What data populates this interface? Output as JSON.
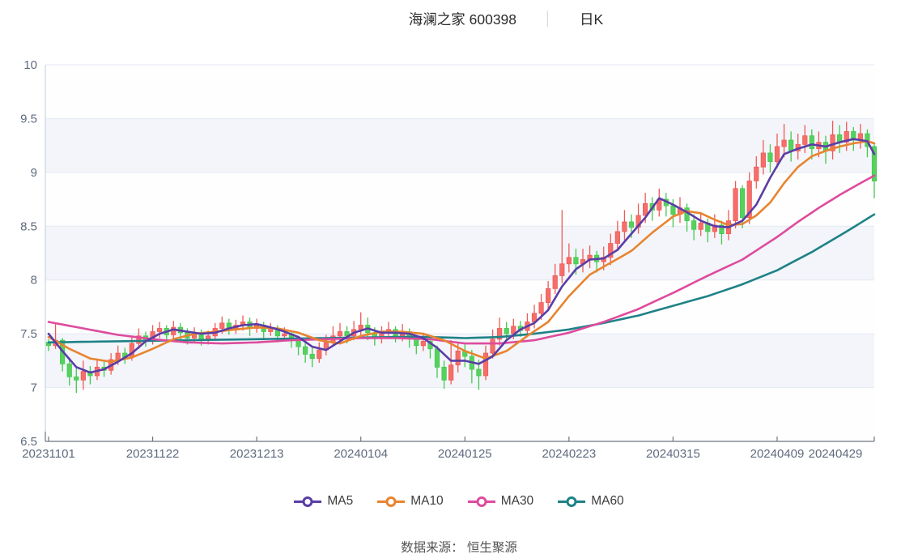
{
  "title": {
    "name_code": "海澜之家 600398",
    "separator": "│",
    "period": "日K"
  },
  "footer": {
    "source_label": "数据来源： 恒生聚源"
  },
  "legend": {
    "items": [
      {
        "label": "MA5",
        "color": "#5a3da6"
      },
      {
        "label": "MA10",
        "color": "#e8842f"
      },
      {
        "label": "MA30",
        "color": "#de4b9d"
      },
      {
        "label": "MA60",
        "color": "#1e8287"
      }
    ]
  },
  "chart_data": {
    "type": "candlestick",
    "title": "海澜之家 600398 日K",
    "ylim": [
      6.5,
      10
    ],
    "y_tick_values": [
      6.5,
      7,
      7.5,
      8,
      8.5,
      9,
      9.5,
      10
    ],
    "y_tick_labels": [
      "6.5",
      "7",
      "7.5",
      "8",
      "8.5",
      "9",
      "9.5",
      "10"
    ],
    "x_tick_labels": [
      "20231101",
      "20231122",
      "20231213",
      "20240104",
      "20240125",
      "20240223",
      "20240315",
      "20240409",
      "20240429"
    ],
    "x_tick_indices": [
      0,
      15,
      30,
      45,
      60,
      75,
      90,
      105,
      119
    ],
    "grid": {
      "band_colors": [
        "#fefefe",
        "#f3f5fa"
      ],
      "gridline_color": "#e4eaf3",
      "axis_color": "#6f7682",
      "label_color": "#5f6b7d"
    },
    "candle_colors": {
      "up": "#f56e6a",
      "up_border": "#ef5a57",
      "down": "#57d15e",
      "down_border": "#43c84d"
    },
    "candle_format": "[open, close, low, high]",
    "candles": [
      [
        7.42,
        7.39,
        7.34,
        7.45
      ],
      [
        7.39,
        7.44,
        7.36,
        7.6
      ],
      [
        7.44,
        7.22,
        7.15,
        7.46
      ],
      [
        7.22,
        7.1,
        7.02,
        7.28
      ],
      [
        7.1,
        7.07,
        6.95,
        7.18
      ],
      [
        7.07,
        7.15,
        6.98,
        7.25
      ],
      [
        7.15,
        7.11,
        7.03,
        7.2
      ],
      [
        7.11,
        7.19,
        7.07,
        7.27
      ],
      [
        7.19,
        7.16,
        7.1,
        7.24
      ],
      [
        7.16,
        7.26,
        7.12,
        7.32
      ],
      [
        7.26,
        7.32,
        7.21,
        7.39
      ],
      [
        7.32,
        7.28,
        7.22,
        7.37
      ],
      [
        7.28,
        7.41,
        7.25,
        7.47
      ],
      [
        7.41,
        7.48,
        7.36,
        7.55
      ],
      [
        7.48,
        7.44,
        7.38,
        7.52
      ],
      [
        7.44,
        7.52,
        7.4,
        7.58
      ],
      [
        7.52,
        7.55,
        7.46,
        7.61
      ],
      [
        7.55,
        7.49,
        7.43,
        7.58
      ],
      [
        7.49,
        7.56,
        7.45,
        7.62
      ],
      [
        7.56,
        7.51,
        7.44,
        7.6
      ],
      [
        7.51,
        7.46,
        7.4,
        7.55
      ],
      [
        7.46,
        7.5,
        7.42,
        7.56
      ],
      [
        7.5,
        7.45,
        7.39,
        7.54
      ],
      [
        7.45,
        7.48,
        7.4,
        7.53
      ],
      [
        7.48,
        7.55,
        7.44,
        7.6
      ],
      [
        7.55,
        7.6,
        7.5,
        7.66
      ],
      [
        7.6,
        7.55,
        7.49,
        7.64
      ],
      [
        7.55,
        7.58,
        7.5,
        7.63
      ],
      [
        7.58,
        7.61,
        7.53,
        7.67
      ],
      [
        7.61,
        7.55,
        7.48,
        7.65
      ],
      [
        7.55,
        7.58,
        7.51,
        7.64
      ],
      [
        7.58,
        7.52,
        7.46,
        7.61
      ],
      [
        7.52,
        7.55,
        7.48,
        7.6
      ],
      [
        7.55,
        7.48,
        7.42,
        7.58
      ],
      [
        7.48,
        7.5,
        7.43,
        7.56
      ],
      [
        7.5,
        7.44,
        7.37,
        7.53
      ],
      [
        7.44,
        7.38,
        7.3,
        7.48
      ],
      [
        7.38,
        7.31,
        7.23,
        7.42
      ],
      [
        7.31,
        7.27,
        7.19,
        7.37
      ],
      [
        7.27,
        7.35,
        7.23,
        7.42
      ],
      [
        7.35,
        7.42,
        7.3,
        7.49
      ],
      [
        7.42,
        7.48,
        7.38,
        7.57
      ],
      [
        7.48,
        7.52,
        7.43,
        7.6
      ],
      [
        7.52,
        7.48,
        7.41,
        7.57
      ],
      [
        7.48,
        7.54,
        7.44,
        7.62
      ],
      [
        7.54,
        7.58,
        7.49,
        7.7
      ],
      [
        7.58,
        7.51,
        7.44,
        7.65
      ],
      [
        7.51,
        7.46,
        7.39,
        7.56
      ],
      [
        7.46,
        7.51,
        7.41,
        7.57
      ],
      [
        7.51,
        7.54,
        7.45,
        7.61
      ],
      [
        7.54,
        7.48,
        7.42,
        7.57
      ],
      [
        7.48,
        7.52,
        7.43,
        7.59
      ],
      [
        7.52,
        7.45,
        7.37,
        7.55
      ],
      [
        7.45,
        7.39,
        7.31,
        7.49
      ],
      [
        7.39,
        7.43,
        7.34,
        7.51
      ],
      [
        7.43,
        7.36,
        7.27,
        7.46
      ],
      [
        7.36,
        7.19,
        7.09,
        7.39
      ],
      [
        7.19,
        7.07,
        6.99,
        7.25
      ],
      [
        7.07,
        7.21,
        7.03,
        7.44
      ],
      [
        7.21,
        7.34,
        7.14,
        7.41
      ],
      [
        7.34,
        7.29,
        7.19,
        7.4
      ],
      [
        7.29,
        7.17,
        7.04,
        7.35
      ],
      [
        7.17,
        7.11,
        6.98,
        7.26
      ],
      [
        7.11,
        7.32,
        7.07,
        7.39
      ],
      [
        7.32,
        7.45,
        7.27,
        7.54
      ],
      [
        7.45,
        7.55,
        7.39,
        7.65
      ],
      [
        7.55,
        7.5,
        7.43,
        7.61
      ],
      [
        7.5,
        7.57,
        7.45,
        7.64
      ],
      [
        7.57,
        7.53,
        7.47,
        7.62
      ],
      [
        7.53,
        7.61,
        7.49,
        7.69
      ],
      [
        7.61,
        7.69,
        7.55,
        7.77
      ],
      [
        7.69,
        7.79,
        7.63,
        7.87
      ],
      [
        7.79,
        7.92,
        7.73,
        7.99
      ],
      [
        7.92,
        8.04,
        7.87,
        8.15
      ],
      [
        8.04,
        8.15,
        7.97,
        8.65
      ],
      [
        8.15,
        8.21,
        8.07,
        8.34
      ],
      [
        8.21,
        8.15,
        8.05,
        8.29
      ],
      [
        8.15,
        8.19,
        8.07,
        8.29
      ],
      [
        8.19,
        8.23,
        8.11,
        8.32
      ],
      [
        8.23,
        8.17,
        8.07,
        8.27
      ],
      [
        8.17,
        8.21,
        8.09,
        8.31
      ],
      [
        8.21,
        8.34,
        8.14,
        8.43
      ],
      [
        8.34,
        8.45,
        8.27,
        8.55
      ],
      [
        8.45,
        8.54,
        8.37,
        8.65
      ],
      [
        8.54,
        8.49,
        8.39,
        8.61
      ],
      [
        8.49,
        8.6,
        8.43,
        8.71
      ],
      [
        8.6,
        8.71,
        8.53,
        8.81
      ],
      [
        8.71,
        8.65,
        8.55,
        8.77
      ],
      [
        8.65,
        8.75,
        8.59,
        8.85
      ],
      [
        8.75,
        8.69,
        8.59,
        8.81
      ],
      [
        8.69,
        8.61,
        8.49,
        8.75
      ],
      [
        8.61,
        8.67,
        8.53,
        8.77
      ],
      [
        8.67,
        8.55,
        8.45,
        8.71
      ],
      [
        8.55,
        8.47,
        8.37,
        8.61
      ],
      [
        8.47,
        8.53,
        8.41,
        8.63
      ],
      [
        8.53,
        8.45,
        8.35,
        8.57
      ],
      [
        8.45,
        8.51,
        8.39,
        8.61
      ],
      [
        8.51,
        8.43,
        8.33,
        8.55
      ],
      [
        8.43,
        8.55,
        8.37,
        8.65
      ],
      [
        8.55,
        8.85,
        8.48,
        8.92
      ],
      [
        8.85,
        8.58,
        8.48,
        8.88
      ],
      [
        8.58,
        8.92,
        8.52,
        9.0
      ],
      [
        8.92,
        9.05,
        8.85,
        9.15
      ],
      [
        9.05,
        9.18,
        8.98,
        9.3
      ],
      [
        9.18,
        9.1,
        9.0,
        9.26
      ],
      [
        9.1,
        9.24,
        9.04,
        9.36
      ],
      [
        9.24,
        9.3,
        9.14,
        9.45
      ],
      [
        9.3,
        9.2,
        9.1,
        9.38
      ],
      [
        9.2,
        9.26,
        9.12,
        9.36
      ],
      [
        9.26,
        9.34,
        9.18,
        9.44
      ],
      [
        9.34,
        9.22,
        9.12,
        9.4
      ],
      [
        9.22,
        9.28,
        9.14,
        9.38
      ],
      [
        9.28,
        9.2,
        9.08,
        9.34
      ],
      [
        9.2,
        9.35,
        9.12,
        9.48
      ],
      [
        9.35,
        9.28,
        9.18,
        9.44
      ],
      [
        9.28,
        9.38,
        9.2,
        9.47
      ],
      [
        9.38,
        9.3,
        9.2,
        9.42
      ],
      [
        9.3,
        9.36,
        9.22,
        9.45
      ],
      [
        9.36,
        9.24,
        9.14,
        9.4
      ],
      [
        9.24,
        8.92,
        8.76,
        9.26
      ]
    ],
    "ma_series": [
      {
        "name": "MA5",
        "color": "#5a3da6",
        "points": [
          [
            0,
            7.5
          ],
          [
            2,
            7.34
          ],
          [
            4,
            7.19
          ],
          [
            6,
            7.14
          ],
          [
            8,
            7.17
          ],
          [
            10,
            7.24
          ],
          [
            12,
            7.32
          ],
          [
            14,
            7.43
          ],
          [
            16,
            7.5
          ],
          [
            18,
            7.54
          ],
          [
            20,
            7.52
          ],
          [
            22,
            7.5
          ],
          [
            24,
            7.51
          ],
          [
            26,
            7.55
          ],
          [
            28,
            7.58
          ],
          [
            30,
            7.59
          ],
          [
            32,
            7.56
          ],
          [
            34,
            7.52
          ],
          [
            36,
            7.47
          ],
          [
            38,
            7.38
          ],
          [
            40,
            7.35
          ],
          [
            42,
            7.43
          ],
          [
            44,
            7.51
          ],
          [
            46,
            7.55
          ],
          [
            48,
            7.51
          ],
          [
            50,
            7.51
          ],
          [
            52,
            7.5
          ],
          [
            54,
            7.46
          ],
          [
            56,
            7.37
          ],
          [
            58,
            7.25
          ],
          [
            60,
            7.25
          ],
          [
            62,
            7.22
          ],
          [
            64,
            7.29
          ],
          [
            66,
            7.44
          ],
          [
            68,
            7.54
          ],
          [
            70,
            7.6
          ],
          [
            72,
            7.72
          ],
          [
            74,
            7.94
          ],
          [
            76,
            8.1
          ],
          [
            78,
            8.19
          ],
          [
            80,
            8.2
          ],
          [
            82,
            8.28
          ],
          [
            84,
            8.43
          ],
          [
            86,
            8.58
          ],
          [
            88,
            8.76
          ],
          [
            90,
            8.7
          ],
          [
            92,
            8.63
          ],
          [
            94,
            8.55
          ],
          [
            96,
            8.5
          ],
          [
            98,
            8.49
          ],
          [
            100,
            8.55
          ],
          [
            102,
            8.7
          ],
          [
            104,
            8.95
          ],
          [
            106,
            9.17
          ],
          [
            108,
            9.22
          ],
          [
            110,
            9.26
          ],
          [
            112,
            9.24
          ],
          [
            114,
            9.28
          ],
          [
            116,
            9.31
          ],
          [
            118,
            9.29
          ],
          [
            119,
            9.17
          ]
        ]
      },
      {
        "name": "MA10",
        "color": "#e8842f",
        "points": [
          [
            0,
            7.47
          ],
          [
            3,
            7.36
          ],
          [
            6,
            7.27
          ],
          [
            9,
            7.24
          ],
          [
            12,
            7.28
          ],
          [
            15,
            7.36
          ],
          [
            18,
            7.45
          ],
          [
            21,
            7.5
          ],
          [
            24,
            7.52
          ],
          [
            27,
            7.54
          ],
          [
            30,
            7.56
          ],
          [
            33,
            7.55
          ],
          [
            36,
            7.51
          ],
          [
            39,
            7.44
          ],
          [
            42,
            7.41
          ],
          [
            45,
            7.48
          ],
          [
            48,
            7.52
          ],
          [
            51,
            7.52
          ],
          [
            54,
            7.5
          ],
          [
            57,
            7.44
          ],
          [
            60,
            7.34
          ],
          [
            63,
            7.27
          ],
          [
            66,
            7.34
          ],
          [
            69,
            7.48
          ],
          [
            72,
            7.61
          ],
          [
            75,
            7.85
          ],
          [
            78,
            8.05
          ],
          [
            81,
            8.16
          ],
          [
            84,
            8.27
          ],
          [
            87,
            8.44
          ],
          [
            90,
            8.59
          ],
          [
            92,
            8.64
          ],
          [
            94,
            8.62
          ],
          [
            96,
            8.56
          ],
          [
            98,
            8.51
          ],
          [
            100,
            8.52
          ],
          [
            102,
            8.6
          ],
          [
            104,
            8.72
          ],
          [
            106,
            8.9
          ],
          [
            108,
            9.05
          ],
          [
            110,
            9.15
          ],
          [
            112,
            9.2
          ],
          [
            114,
            9.24
          ],
          [
            116,
            9.27
          ],
          [
            118,
            9.29
          ],
          [
            119,
            9.27
          ]
        ]
      },
      {
        "name": "MA30",
        "color": "#de4b9d",
        "points": [
          [
            0,
            7.61
          ],
          [
            5,
            7.55
          ],
          [
            10,
            7.49
          ],
          [
            15,
            7.45
          ],
          [
            20,
            7.42
          ],
          [
            25,
            7.41
          ],
          [
            30,
            7.42
          ],
          [
            35,
            7.44
          ],
          [
            40,
            7.45
          ],
          [
            45,
            7.46
          ],
          [
            50,
            7.46
          ],
          [
            55,
            7.45
          ],
          [
            60,
            7.41
          ],
          [
            65,
            7.41
          ],
          [
            70,
            7.44
          ],
          [
            75,
            7.51
          ],
          [
            80,
            7.61
          ],
          [
            85,
            7.73
          ],
          [
            90,
            7.88
          ],
          [
            95,
            8.04
          ],
          [
            100,
            8.19
          ],
          [
            105,
            8.4
          ],
          [
            108,
            8.54
          ],
          [
            111,
            8.67
          ],
          [
            114,
            8.79
          ],
          [
            117,
            8.9
          ],
          [
            119,
            8.97
          ]
        ]
      },
      {
        "name": "MA60",
        "color": "#1e8287",
        "points": [
          [
            0,
            7.42
          ],
          [
            10,
            7.43
          ],
          [
            20,
            7.44
          ],
          [
            30,
            7.45
          ],
          [
            40,
            7.46
          ],
          [
            50,
            7.47
          ],
          [
            55,
            7.47
          ],
          [
            60,
            7.46
          ],
          [
            65,
            7.47
          ],
          [
            70,
            7.5
          ],
          [
            75,
            7.54
          ],
          [
            80,
            7.6
          ],
          [
            85,
            7.67
          ],
          [
            90,
            7.76
          ],
          [
            95,
            7.85
          ],
          [
            100,
            7.96
          ],
          [
            105,
            8.09
          ],
          [
            110,
            8.26
          ],
          [
            115,
            8.45
          ],
          [
            119,
            8.61
          ]
        ]
      }
    ]
  }
}
